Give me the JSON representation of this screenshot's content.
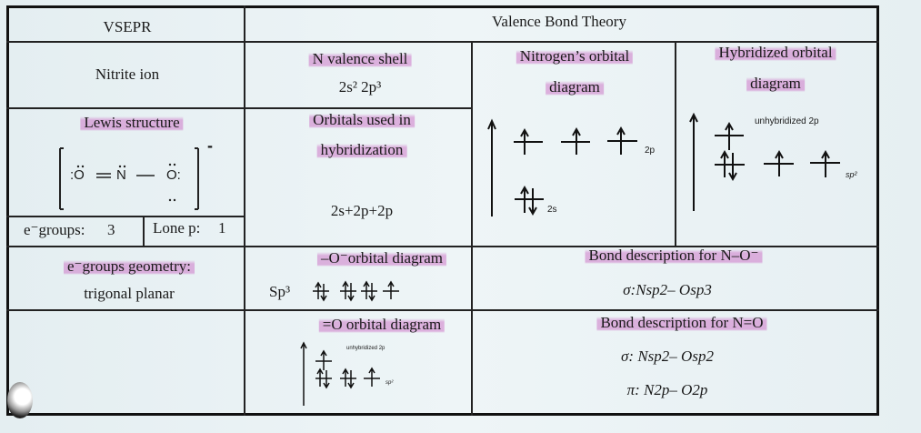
{
  "vsepr": {
    "header": "VSEPR",
    "molecule": "Nitrite ion",
    "lewis_label": "Lewis structure",
    "lewis": {
      "left_atom": ":O",
      "center_atom": "N",
      "right_atom": "O:",
      "charge": "-"
    },
    "e_groups_label": "e⁻groups:",
    "e_groups_value": "3",
    "lone_pairs_label": "Lone p:",
    "lone_pairs_value": "1",
    "geometry_label": "e⁻groups geometry:",
    "geometry_value": "trigonal planar"
  },
  "vbt": {
    "header": "Valence Bond Theory",
    "valence_shell_label": "N valence shell",
    "valence_shell_value": "2s² 2p³",
    "orbitals_used_label_1": "Orbitals used in",
    "orbitals_used_label_2": "hybridization",
    "orbitals_used_value": "2s+2p+2p",
    "n_orbital_label_1": "Nitrogen’s orbital",
    "n_orbital_label_2": "diagram",
    "n_orbital_2p": "2p",
    "n_orbital_2s": "2s",
    "hybrid_label_1": "Hybridized orbital",
    "hybrid_label_2": "diagram",
    "hybrid_unhybridized": "unhybridized 2p",
    "hybrid_sp2": "sp²",
    "o_single_label": "–O⁻orbital diagram",
    "o_single_hybrid": "Sp³",
    "o_double_label": "=O orbital diagram",
    "o_double_unhybridized": "unhybridized 2p",
    "o_double_sp2": "sp²",
    "bond_single_label": "Bond description for N–O⁻",
    "bond_single_sigma": "σ:Nsp2– Osp3",
    "bond_double_label": "Bond description for N=O",
    "bond_double_sigma": "σ: Nsp2– Osp2",
    "bond_double_pi": "π: N2p– O2p"
  },
  "colors": {
    "highlight": "#cd78c8",
    "ink": "#1a1a1a",
    "paper": "#e9f1f3"
  }
}
